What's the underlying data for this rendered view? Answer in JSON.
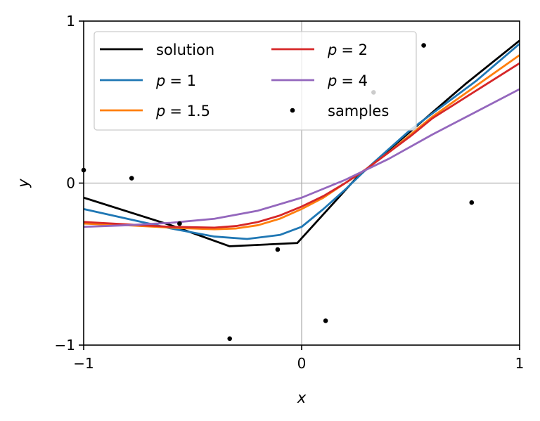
{
  "chart_data": {
    "type": "line",
    "xlabel": "x",
    "ylabel": "y",
    "xlim": [
      -1,
      1
    ],
    "ylim": [
      -1,
      1
    ],
    "xticks": [
      -1,
      0,
      1
    ],
    "yticks": [
      -1,
      0,
      1
    ],
    "xtick_labels": [
      "−1",
      "0",
      "1"
    ],
    "ytick_labels": [
      "−1",
      "0",
      "1"
    ],
    "grid": "zero-lines",
    "legend": {
      "placement": "top-left",
      "columns": 2
    },
    "series": [
      {
        "name": "solution",
        "type": "line",
        "color": "#000000",
        "x": [
          -1.0,
          -0.6,
          -0.33,
          -0.02,
          0.25,
          0.5,
          0.75,
          1.0
        ],
        "y": [
          -0.09,
          -0.26,
          -0.39,
          -0.37,
          0.03,
          0.32,
          0.61,
          0.88
        ]
      },
      {
        "name": "p = 1",
        "name_math": "p",
        "name_value": "= 1",
        "type": "line",
        "color": "#1f77b4",
        "x": [
          -1.0,
          -0.8,
          -0.6,
          -0.4,
          -0.25,
          -0.1,
          0.0,
          0.1,
          0.2,
          0.3,
          0.4,
          0.5,
          0.6,
          0.8,
          1.0
        ],
        "y": [
          -0.16,
          -0.22,
          -0.28,
          -0.33,
          -0.345,
          -0.32,
          -0.27,
          -0.16,
          -0.04,
          0.09,
          0.21,
          0.33,
          0.43,
          0.63,
          0.86
        ]
      },
      {
        "name": "p = 1.5",
        "name_math": "p",
        "name_value": "= 1.5",
        "type": "line",
        "color": "#ff7f0e",
        "x": [
          -1.0,
          -0.8,
          -0.6,
          -0.4,
          -0.3,
          -0.2,
          -0.1,
          0.0,
          0.1,
          0.2,
          0.3,
          0.4,
          0.5,
          0.6,
          0.8,
          1.0
        ],
        "y": [
          -0.25,
          -0.26,
          -0.275,
          -0.285,
          -0.28,
          -0.26,
          -0.22,
          -0.16,
          -0.09,
          0.0,
          0.09,
          0.19,
          0.3,
          0.41,
          0.6,
          0.79
        ]
      },
      {
        "name": "p = 2",
        "name_math": "p",
        "name_value": "= 2",
        "type": "line",
        "color": "#d62728",
        "x": [
          -1.0,
          -0.8,
          -0.6,
          -0.4,
          -0.3,
          -0.2,
          -0.1,
          0.0,
          0.1,
          0.2,
          0.3,
          0.4,
          0.5,
          0.6,
          0.8,
          1.0
        ],
        "y": [
          -0.24,
          -0.255,
          -0.27,
          -0.275,
          -0.265,
          -0.24,
          -0.2,
          -0.145,
          -0.08,
          0.0,
          0.09,
          0.19,
          0.29,
          0.4,
          0.57,
          0.74
        ]
      },
      {
        "name": "p = 4",
        "name_math": "p",
        "name_value": "= 4",
        "type": "line",
        "color": "#9467bd",
        "x": [
          -1.0,
          -0.8,
          -0.6,
          -0.4,
          -0.2,
          0.0,
          0.2,
          0.4,
          0.6,
          0.8,
          1.0
        ],
        "y": [
          -0.27,
          -0.26,
          -0.245,
          -0.22,
          -0.17,
          -0.09,
          0.02,
          0.15,
          0.3,
          0.44,
          0.58
        ]
      },
      {
        "name": "samples",
        "type": "scatter",
        "color": "#000000",
        "x": [
          -1.0,
          -0.78,
          -0.56,
          -0.33,
          -0.11,
          0.11,
          0.33,
          0.56,
          0.78
        ],
        "y": [
          0.08,
          0.03,
          -0.25,
          -0.96,
          -0.41,
          -0.85,
          0.56,
          0.85,
          -0.12
        ]
      }
    ]
  }
}
